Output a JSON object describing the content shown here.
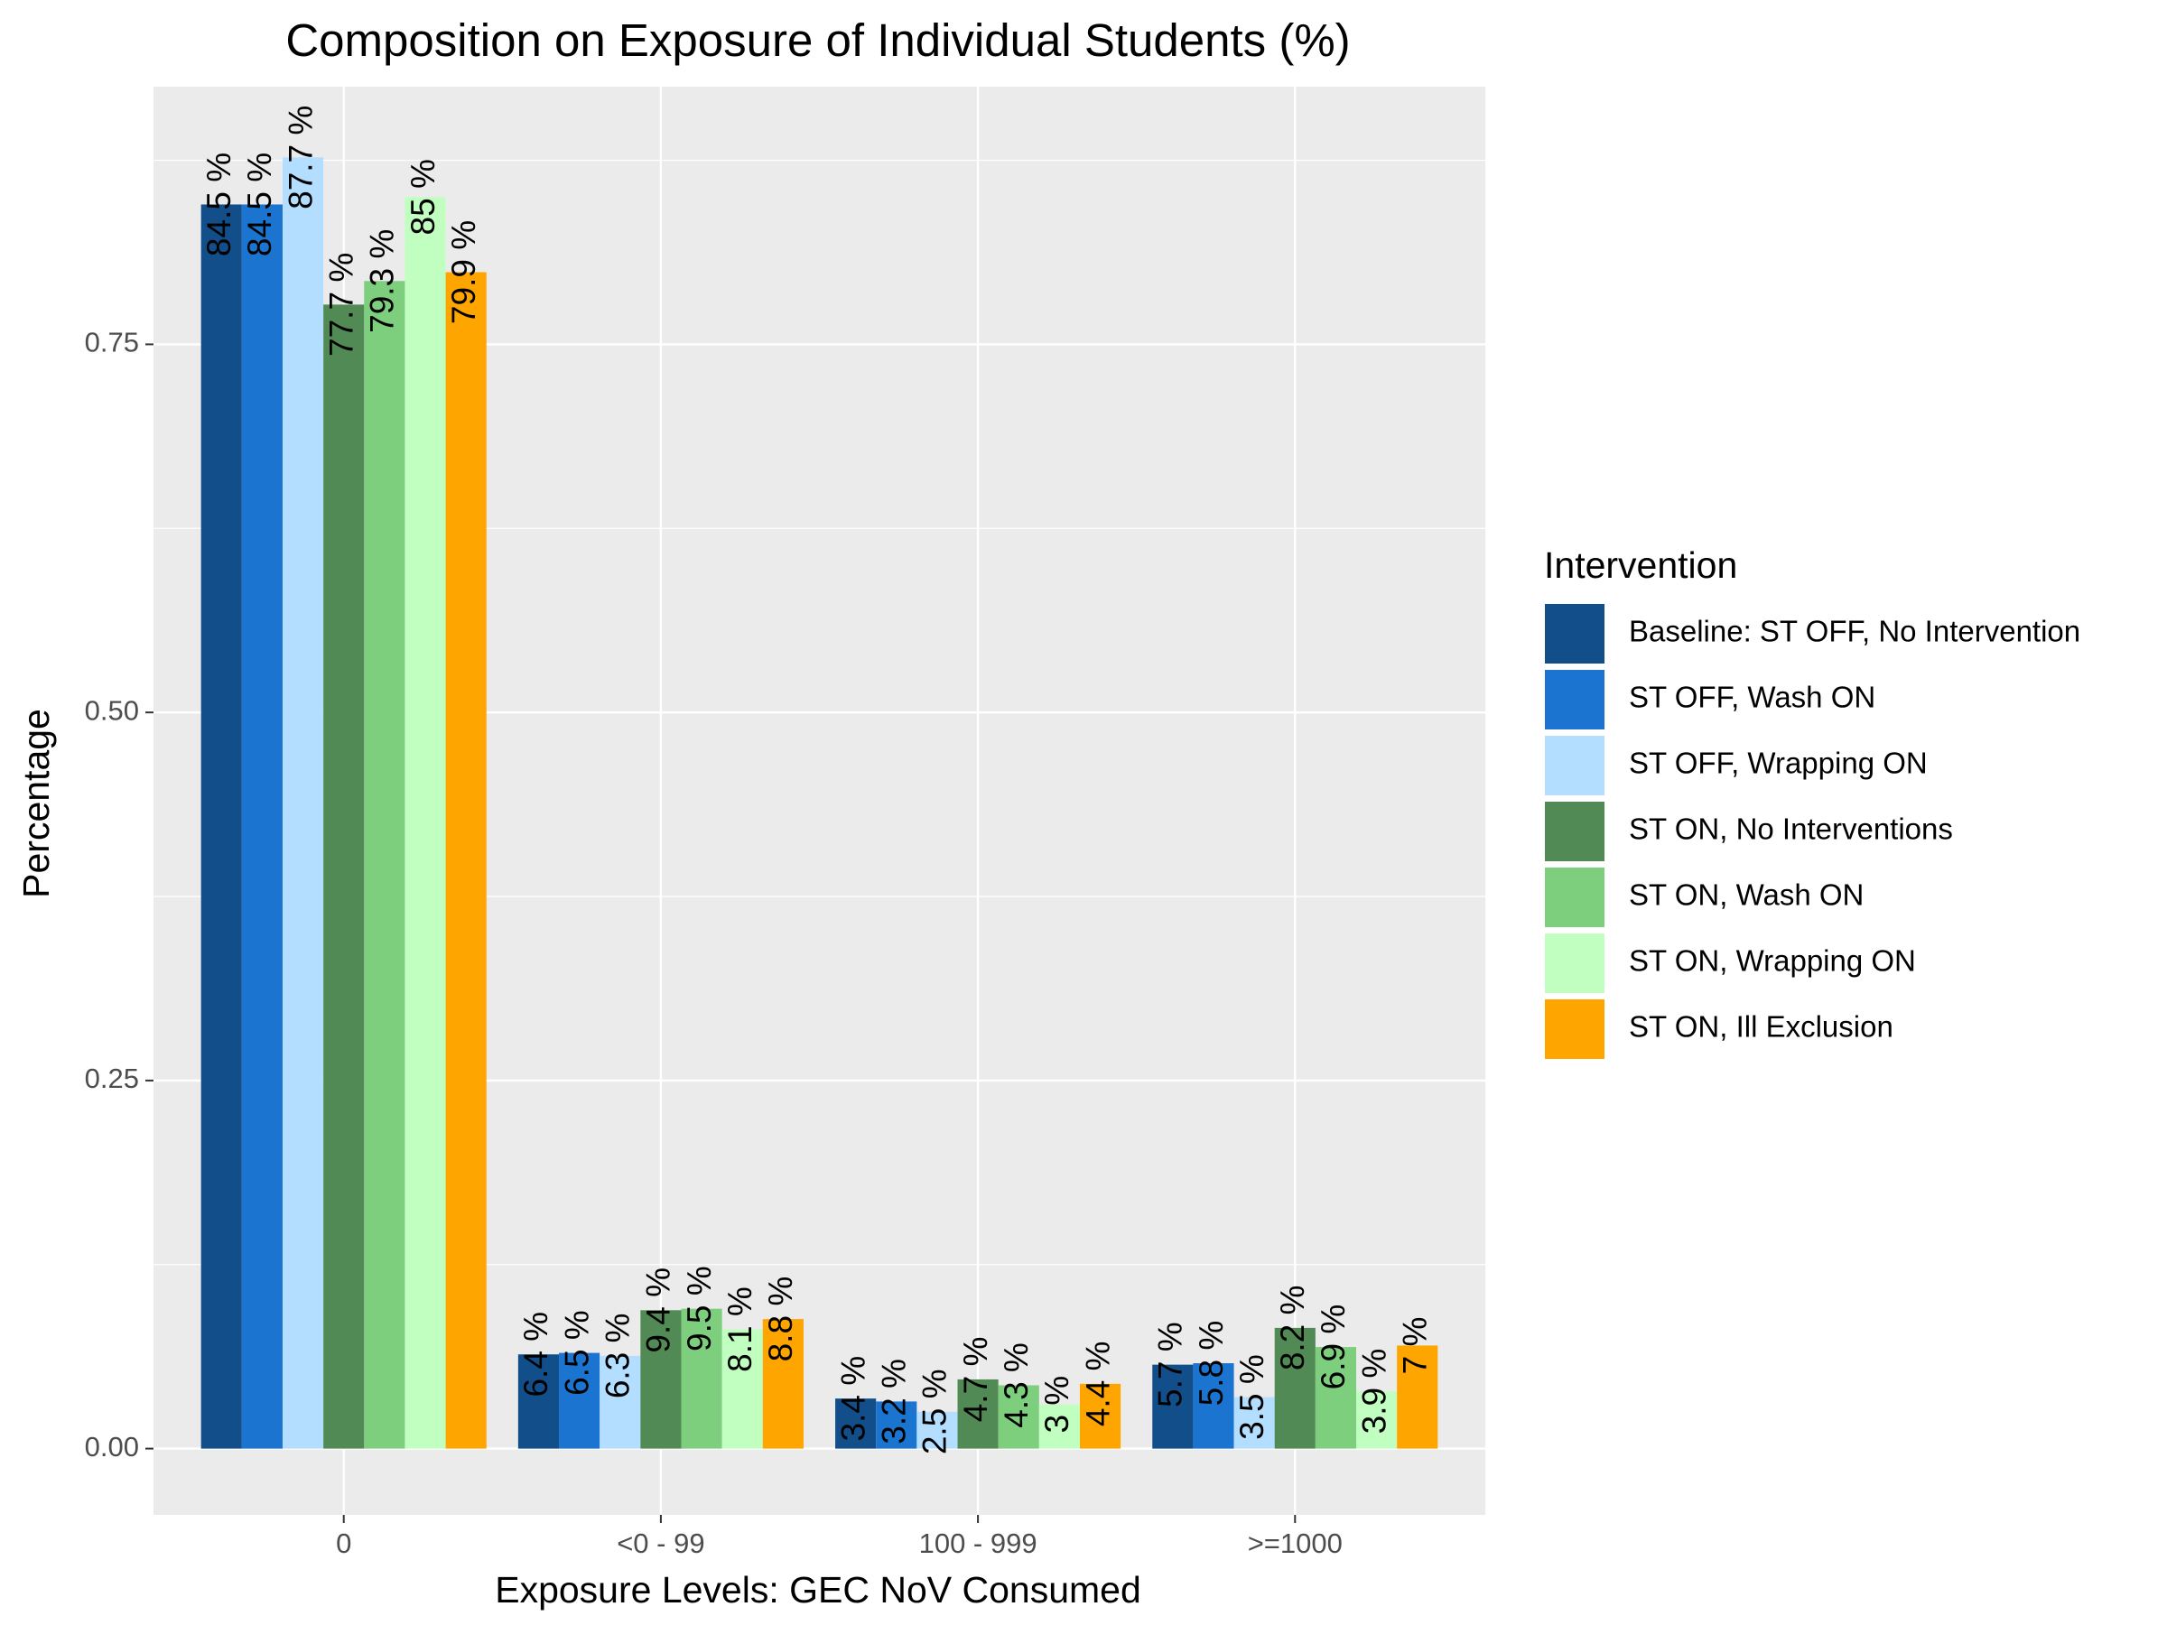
{
  "chart_data": {
    "type": "bar",
    "title": "Composition on Exposure of Individual Students (%)",
    "xlabel": "Exposure Levels: GEC NoV Consumed",
    "ylabel": "Percentage",
    "ylim": [
      -0.045,
      0.925
    ],
    "yticks": [
      "0.00",
      "0.25",
      "0.50",
      "0.75"
    ],
    "ytick_values": [
      0,
      0.25,
      0.5,
      0.75
    ],
    "grid": true,
    "legend_position": "right",
    "legend_title": "Intervention",
    "categories": [
      "0",
      "<0 - 99",
      "100 - 999",
      ">=1000"
    ],
    "series": [
      {
        "name": "Baseline: ST OFF, No Intervention",
        "color": "#124E89",
        "values": [
          0.845,
          0.064,
          0.034,
          0.057
        ],
        "labels": [
          "84.5 %",
          "6.4 %",
          "3.4 %",
          "5.7 %"
        ]
      },
      {
        "name": "ST OFF, Wash ON",
        "color": "#1B75D0",
        "values": [
          0.845,
          0.065,
          0.032,
          0.058
        ],
        "labels": [
          "84.5 %",
          "6.5 %",
          "3.2 %",
          "5.8 %"
        ]
      },
      {
        "name": "ST OFF, Wrapping ON",
        "color": "#B3DEFF",
        "values": [
          0.877,
          0.063,
          0.025,
          0.035
        ],
        "labels": [
          "87.7 %",
          "6.3 %",
          "2.5 %",
          "3.5 %"
        ]
      },
      {
        "name": "ST ON, No Interventions",
        "color": "#528A55",
        "values": [
          0.777,
          0.094,
          0.047,
          0.082
        ],
        "labels": [
          "77.7 %",
          "9.4 %",
          "4.7 %",
          "8.2 %"
        ]
      },
      {
        "name": "ST ON, Wash ON",
        "color": "#7DCE7D",
        "values": [
          0.793,
          0.095,
          0.043,
          0.069
        ],
        "labels": [
          "79.3 %",
          "9.5 %",
          "4.3 %",
          "6.9 %"
        ]
      },
      {
        "name": "ST ON, Wrapping ON",
        "color": "#C0FFC0",
        "values": [
          0.85,
          0.081,
          0.03,
          0.039
        ],
        "labels": [
          "85 %",
          "8.1 %",
          "3 %",
          "3.9 %"
        ]
      },
      {
        "name": "ST ON, Ill Exclusion",
        "color": "#FFA500",
        "values": [
          0.799,
          0.088,
          0.044,
          0.07
        ],
        "labels": [
          "79.9 %",
          "8.8 %",
          "4.4 %",
          "7 %"
        ]
      }
    ]
  }
}
